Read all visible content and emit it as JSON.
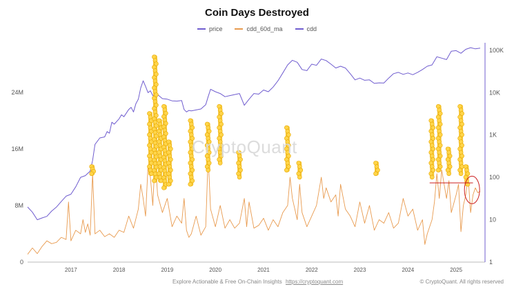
{
  "chart_data": {
    "type": "line",
    "title": "Coin Days Destroyed",
    "legend": [
      "price",
      "cdd_60d_ma",
      "cdd"
    ],
    "colors": {
      "price": "#6f5ccf",
      "cdd_60d_ma": "#e89a4e",
      "cdd": "#f6c425",
      "annotation": "#cc1f1f"
    },
    "x_ticks": [
      "2017",
      "2018",
      "2019",
      "2020",
      "2021",
      "2022",
      "2023",
      "2024",
      "2025"
    ],
    "x_axis_domain_years": [
      2016.6,
      2025.5
    ],
    "y_left": {
      "ticks": [
        "0",
        "8M",
        "16M",
        "24M"
      ],
      "tick_values": [
        0,
        8000000,
        16000000,
        24000000
      ],
      "range": [
        0,
        31000000
      ]
    },
    "y_right": {
      "scale": "log",
      "ticks": [
        "1",
        "10",
        "100",
        "1K",
        "10K",
        "100K"
      ],
      "tick_values": [
        1,
        10,
        100,
        1000,
        10000,
        100000
      ],
      "range": [
        1,
        150000
      ]
    },
    "series": [
      {
        "name": "price",
        "axis": "right",
        "points": [
          [
            2016.6,
            20
          ],
          [
            2016.7,
            15
          ],
          [
            2016.8,
            10
          ],
          [
            2016.9,
            11
          ],
          [
            2017.0,
            12
          ],
          [
            2017.1,
            16
          ],
          [
            2017.2,
            20
          ],
          [
            2017.3,
            27
          ],
          [
            2017.4,
            36
          ],
          [
            2017.5,
            40
          ],
          [
            2017.6,
            60
          ],
          [
            2017.7,
            100
          ],
          [
            2017.8,
            110
          ],
          [
            2017.9,
            140
          ],
          [
            2017.95,
            250
          ],
          [
            2018.0,
            600
          ],
          [
            2018.1,
            850
          ],
          [
            2018.2,
            900
          ],
          [
            2018.25,
            1200
          ],
          [
            2018.3,
            1100
          ],
          [
            2018.35,
            2000
          ],
          [
            2018.4,
            1800
          ],
          [
            2018.5,
            2400
          ],
          [
            2018.55,
            3000
          ],
          [
            2018.6,
            2700
          ],
          [
            2018.7,
            4000
          ],
          [
            2018.75,
            4500
          ],
          [
            2018.8,
            3500
          ],
          [
            2018.85,
            5500
          ],
          [
            2018.9,
            7000
          ],
          [
            2018.95,
            13000
          ],
          [
            2019.0,
            19000
          ],
          [
            2019.05,
            14000
          ],
          [
            2019.1,
            10000
          ],
          [
            2019.15,
            11000
          ],
          [
            2019.2,
            8500
          ],
          [
            2019.3,
            9000
          ],
          [
            2019.4,
            7200
          ],
          [
            2019.5,
            7000
          ],
          [
            2019.6,
            6400
          ],
          [
            2019.7,
            6300
          ],
          [
            2019.8,
            6500
          ],
          [
            2019.85,
            4000
          ],
          [
            2019.9,
            3500
          ],
          [
            2019.95,
            3800
          ],
          [
            2020.0,
            3700
          ],
          [
            2020.1,
            3900
          ],
          [
            2020.2,
            4100
          ],
          [
            2020.3,
            5200
          ],
          [
            2020.35,
            8000
          ],
          [
            2020.4,
            12000
          ],
          [
            2020.5,
            10500
          ],
          [
            2020.6,
            9500
          ],
          [
            2020.7,
            8000
          ],
          [
            2020.8,
            8500
          ],
          [
            2020.9,
            9000
          ],
          [
            2021.0,
            9500
          ],
          [
            2021.1,
            5000
          ],
          [
            2021.2,
            7000
          ],
          [
            2021.3,
            9500
          ],
          [
            2021.4,
            9200
          ],
          [
            2021.5,
            11500
          ],
          [
            2021.6,
            10500
          ],
          [
            2021.7,
            13500
          ],
          [
            2021.8,
            19000
          ],
          [
            2021.9,
            29000
          ],
          [
            2022.0,
            45000
          ],
          [
            2022.1,
            58000
          ],
          [
            2022.2,
            52000
          ],
          [
            2022.3,
            35000
          ],
          [
            2022.4,
            33000
          ],
          [
            2022.5,
            47000
          ],
          [
            2022.6,
            44000
          ],
          [
            2022.7,
            62000
          ],
          [
            2022.8,
            57000
          ],
          [
            2022.9,
            47000
          ],
          [
            2023.0,
            38000
          ],
          [
            2023.1,
            42000
          ],
          [
            2023.2,
            38000
          ],
          [
            2023.3,
            28000
          ],
          [
            2023.4,
            20000
          ],
          [
            2023.5,
            22000
          ],
          [
            2023.6,
            19500
          ],
          [
            2023.7,
            20000
          ],
          [
            2023.8,
            16500
          ],
          [
            2023.9,
            17000
          ],
          [
            2024.0,
            16800
          ],
          [
            2024.1,
            22000
          ],
          [
            2024.2,
            28000
          ],
          [
            2024.3,
            30000
          ],
          [
            2024.4,
            27000
          ],
          [
            2024.5,
            29000
          ],
          [
            2024.6,
            26500
          ],
          [
            2024.7,
            30000
          ],
          [
            2024.8,
            35000
          ],
          [
            2024.9,
            42000
          ],
          [
            2025.0,
            45000
          ],
          [
            2025.1,
            70000
          ],
          [
            2025.2,
            65000
          ],
          [
            2025.3,
            60000
          ],
          [
            2025.4,
            95000
          ],
          [
            2025.5,
            98000
          ],
          [
            2025.6,
            85000
          ],
          [
            2025.7,
            105000
          ],
          [
            2025.8,
            115000
          ],
          [
            2025.9,
            108000
          ],
          [
            2026.0,
            112000
          ]
        ]
      },
      {
        "name": "cdd_60d_ma",
        "axis": "left",
        "points": [
          [
            2016.6,
            1100000
          ],
          [
            2016.7,
            2000000
          ],
          [
            2016.8,
            1200000
          ],
          [
            2016.9,
            2200000
          ],
          [
            2017.0,
            3000000
          ],
          [
            2017.1,
            2600000
          ],
          [
            2017.2,
            2800000
          ],
          [
            2017.3,
            3500000
          ],
          [
            2017.4,
            3200000
          ],
          [
            2017.45,
            8500000
          ],
          [
            2017.5,
            3000000
          ],
          [
            2017.6,
            4500000
          ],
          [
            2017.7,
            4000000
          ],
          [
            2017.75,
            6000000
          ],
          [
            2017.8,
            4200000
          ],
          [
            2017.85,
            5400000
          ],
          [
            2017.9,
            3800000
          ],
          [
            2017.95,
            12500000
          ],
          [
            2018.0,
            4000000
          ],
          [
            2018.1,
            4500000
          ],
          [
            2018.2,
            3600000
          ],
          [
            2018.3,
            4000000
          ],
          [
            2018.4,
            3500000
          ],
          [
            2018.5,
            4500000
          ],
          [
            2018.6,
            4200000
          ],
          [
            2018.7,
            6500000
          ],
          [
            2018.8,
            4800000
          ],
          [
            2018.9,
            7500000
          ],
          [
            2018.95,
            11000000
          ],
          [
            2019.0,
            9000000
          ],
          [
            2019.05,
            6500000
          ],
          [
            2019.1,
            13500000
          ],
          [
            2019.15,
            12000000
          ],
          [
            2019.2,
            8000000
          ],
          [
            2019.25,
            15000000
          ],
          [
            2019.3,
            9500000
          ],
          [
            2019.4,
            7000000
          ],
          [
            2019.5,
            9000000
          ],
          [
            2019.6,
            5000000
          ],
          [
            2019.7,
            6500000
          ],
          [
            2019.8,
            5500000
          ],
          [
            2019.85,
            9000000
          ],
          [
            2019.9,
            4500000
          ],
          [
            2019.95,
            3500000
          ],
          [
            2020.0,
            4000000
          ],
          [
            2020.1,
            6500000
          ],
          [
            2020.2,
            3800000
          ],
          [
            2020.3,
            5000000
          ],
          [
            2020.35,
            15000000
          ],
          [
            2020.4,
            7500000
          ],
          [
            2020.5,
            5000000
          ],
          [
            2020.6,
            8000000
          ],
          [
            2020.7,
            4800000
          ],
          [
            2020.8,
            6000000
          ],
          [
            2020.9,
            4800000
          ],
          [
            2021.0,
            5500000
          ],
          [
            2021.1,
            9000000
          ],
          [
            2021.15,
            5000000
          ],
          [
            2021.2,
            8500000
          ],
          [
            2021.3,
            4800000
          ],
          [
            2021.4,
            5200000
          ],
          [
            2021.5,
            6200000
          ],
          [
            2021.6,
            4500000
          ],
          [
            2021.7,
            6000000
          ],
          [
            2021.8,
            5000000
          ],
          [
            2021.9,
            7000000
          ],
          [
            2022.0,
            8000000
          ],
          [
            2022.05,
            12000000
          ],
          [
            2022.1,
            9000000
          ],
          [
            2022.2,
            6000000
          ],
          [
            2022.25,
            11000000
          ],
          [
            2022.3,
            7000000
          ],
          [
            2022.4,
            5000000
          ],
          [
            2022.5,
            6500000
          ],
          [
            2022.6,
            8000000
          ],
          [
            2022.7,
            12000000
          ],
          [
            2022.75,
            9000000
          ],
          [
            2022.8,
            10500000
          ],
          [
            2022.9,
            8500000
          ],
          [
            2023.0,
            9500000
          ],
          [
            2023.05,
            6500000
          ],
          [
            2023.1,
            11000000
          ],
          [
            2023.2,
            7500000
          ],
          [
            2023.3,
            6500000
          ],
          [
            2023.4,
            5000000
          ],
          [
            2023.5,
            8500000
          ],
          [
            2023.6,
            5500000
          ],
          [
            2023.7,
            8000000
          ],
          [
            2023.8,
            4500000
          ],
          [
            2023.9,
            6000000
          ],
          [
            2024.0,
            5500000
          ],
          [
            2024.1,
            7000000
          ],
          [
            2024.2,
            4800000
          ],
          [
            2024.3,
            5500000
          ],
          [
            2024.4,
            9000000
          ],
          [
            2024.5,
            6500000
          ],
          [
            2024.6,
            7500000
          ],
          [
            2024.7,
            4500000
          ],
          [
            2024.8,
            6000000
          ],
          [
            2024.85,
            2500000
          ],
          [
            2024.9,
            4000000
          ],
          [
            2025.0,
            6000000
          ],
          [
            2025.05,
            8500000
          ],
          [
            2025.1,
            12500000
          ],
          [
            2025.15,
            9000000
          ],
          [
            2025.2,
            13000000
          ],
          [
            2025.3,
            9000000
          ],
          [
            2025.35,
            11500000
          ],
          [
            2025.4,
            7000000
          ],
          [
            2025.5,
            9500000
          ],
          [
            2025.55,
            11000000
          ],
          [
            2025.6,
            4300000
          ],
          [
            2025.65,
            8000000
          ],
          [
            2025.7,
            9500000
          ],
          [
            2025.75,
            12000000
          ],
          [
            2025.8,
            7000000
          ],
          [
            2025.85,
            9500000
          ],
          [
            2025.9,
            10500000
          ],
          [
            2025.95,
            9800000
          ],
          [
            2026.0,
            10000000
          ]
        ]
      },
      {
        "name": "cdd",
        "axis": "left",
        "spikes": [
          {
            "x": 2017.95,
            "y_from": 12500000,
            "y_to": 13500000
          },
          {
            "x": 2019.15,
            "y_from": 12500000,
            "y_to": 21000000
          },
          {
            "x": 2019.25,
            "y_from": 11500000,
            "y_to": 29000000
          },
          {
            "x": 2019.35,
            "y_from": 11500000,
            "y_to": 20000000
          },
          {
            "x": 2019.45,
            "y_from": 10500000,
            "y_to": 22000000
          },
          {
            "x": 2019.55,
            "y_from": 11000000,
            "y_to": 17000000
          },
          {
            "x": 2020.0,
            "y_from": 11000000,
            "y_to": 20000000
          },
          {
            "x": 2020.35,
            "y_from": 13000000,
            "y_to": 19500000
          },
          {
            "x": 2020.6,
            "y_from": 14000000,
            "y_to": 22000000
          },
          {
            "x": 2021.0,
            "y_from": 12000000,
            "y_to": 15500000
          },
          {
            "x": 2022.0,
            "y_from": 13000000,
            "y_to": 19000000
          },
          {
            "x": 2022.25,
            "y_from": 12000000,
            "y_to": 14000000
          },
          {
            "x": 2023.85,
            "y_from": 12500000,
            "y_to": 14000000
          },
          {
            "x": 2025.0,
            "y_from": 12000000,
            "y_to": 20000000
          },
          {
            "x": 2025.15,
            "y_from": 13000000,
            "y_to": 22000000
          },
          {
            "x": 2025.35,
            "y_from": 12500000,
            "y_to": 16000000
          },
          {
            "x": 2025.6,
            "y_from": 12500000,
            "y_to": 22000000
          },
          {
            "x": 2025.72,
            "y_from": 11000000,
            "y_to": 13500000
          }
        ]
      }
    ]
  },
  "watermark": "CryptoQuant",
  "footer": {
    "left": "Explore Actionable & Free On-Chain Insights",
    "link": "https://cryptoquant.com",
    "right": "© CryptoQuant. All rights reserved"
  }
}
